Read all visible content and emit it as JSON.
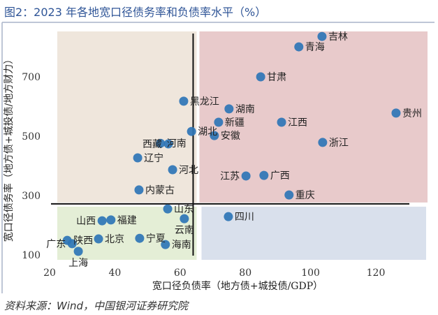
{
  "title": "图2：2023 年各地宽口径债务率和负债率水平（%）",
  "source": "资料来源：Wind，中国银河证券研究院",
  "chart_data": {
    "type": "scatter",
    "xlabel": "宽口径负债率（地方债+城投债/GDP）",
    "ylabel": "宽口径债务率（地方债+城投债/地方财力）",
    "xticks": [
      20,
      40,
      60,
      80,
      100,
      120
    ],
    "yticks": [
      100,
      300,
      500,
      700
    ],
    "xlim": [
      20,
      135
    ],
    "ylim": [
      50,
      880
    ],
    "grid": false,
    "reference_lines": {
      "x": 64,
      "y": 272
    },
    "quadrant_colors": {
      "top_left": "#efe6dc",
      "top_right": "#e8cacb",
      "bottom_left": "#e4eed6",
      "bottom_right": "#d9e0ec"
    },
    "point_color": "#2e75b6",
    "points": [
      {
        "name": "吉林",
        "x": 103.5,
        "y": 836
      },
      {
        "name": "青海",
        "x": 96.4,
        "y": 801
      },
      {
        "name": "甘肃",
        "x": 84.7,
        "y": 700
      },
      {
        "name": "黑龙江",
        "x": 61.1,
        "y": 618
      },
      {
        "name": "湖南",
        "x": 75.0,
        "y": 592
      },
      {
        "name": "贵州",
        "x": 126.2,
        "y": 578
      },
      {
        "name": "新疆",
        "x": 71.8,
        "y": 547
      },
      {
        "name": "江西",
        "x": 91.1,
        "y": 547
      },
      {
        "name": "湖北",
        "x": 63.5,
        "y": 516
      },
      {
        "name": "安徽",
        "x": 70.5,
        "y": 502
      },
      {
        "name": "浙江",
        "x": 103.7,
        "y": 479
      },
      {
        "name": "河南",
        "x": 54.0,
        "y": 476
      },
      {
        "name": "西藏",
        "x": 56.4,
        "y": 474
      },
      {
        "name": "辽宁",
        "x": 47.0,
        "y": 427
      },
      {
        "name": "河北",
        "x": 57.7,
        "y": 387
      },
      {
        "name": "广西",
        "x": 85.7,
        "y": 368
      },
      {
        "name": "江苏",
        "x": 80.2,
        "y": 366
      },
      {
        "name": "内蒙古",
        "x": 47.4,
        "y": 319
      },
      {
        "name": "重庆",
        "x": 93.4,
        "y": 302
      },
      {
        "name": "山东",
        "x": 56.2,
        "y": 255
      },
      {
        "name": "四川",
        "x": 74.8,
        "y": 229
      },
      {
        "name": "云南",
        "x": 61.3,
        "y": 222
      },
      {
        "name": "福建",
        "x": 38.8,
        "y": 218
      },
      {
        "name": "山西",
        "x": 36.1,
        "y": 215
      },
      {
        "name": "宁夏",
        "x": 47.6,
        "y": 156
      },
      {
        "name": "北京",
        "x": 35.0,
        "y": 154
      },
      {
        "name": "陕西",
        "x": 25.4,
        "y": 149
      },
      {
        "name": "广东",
        "x": 26.9,
        "y": 138
      },
      {
        "name": "海南",
        "x": 55.5,
        "y": 135
      },
      {
        "name": "上海",
        "x": 28.8,
        "y": 112
      }
    ]
  }
}
